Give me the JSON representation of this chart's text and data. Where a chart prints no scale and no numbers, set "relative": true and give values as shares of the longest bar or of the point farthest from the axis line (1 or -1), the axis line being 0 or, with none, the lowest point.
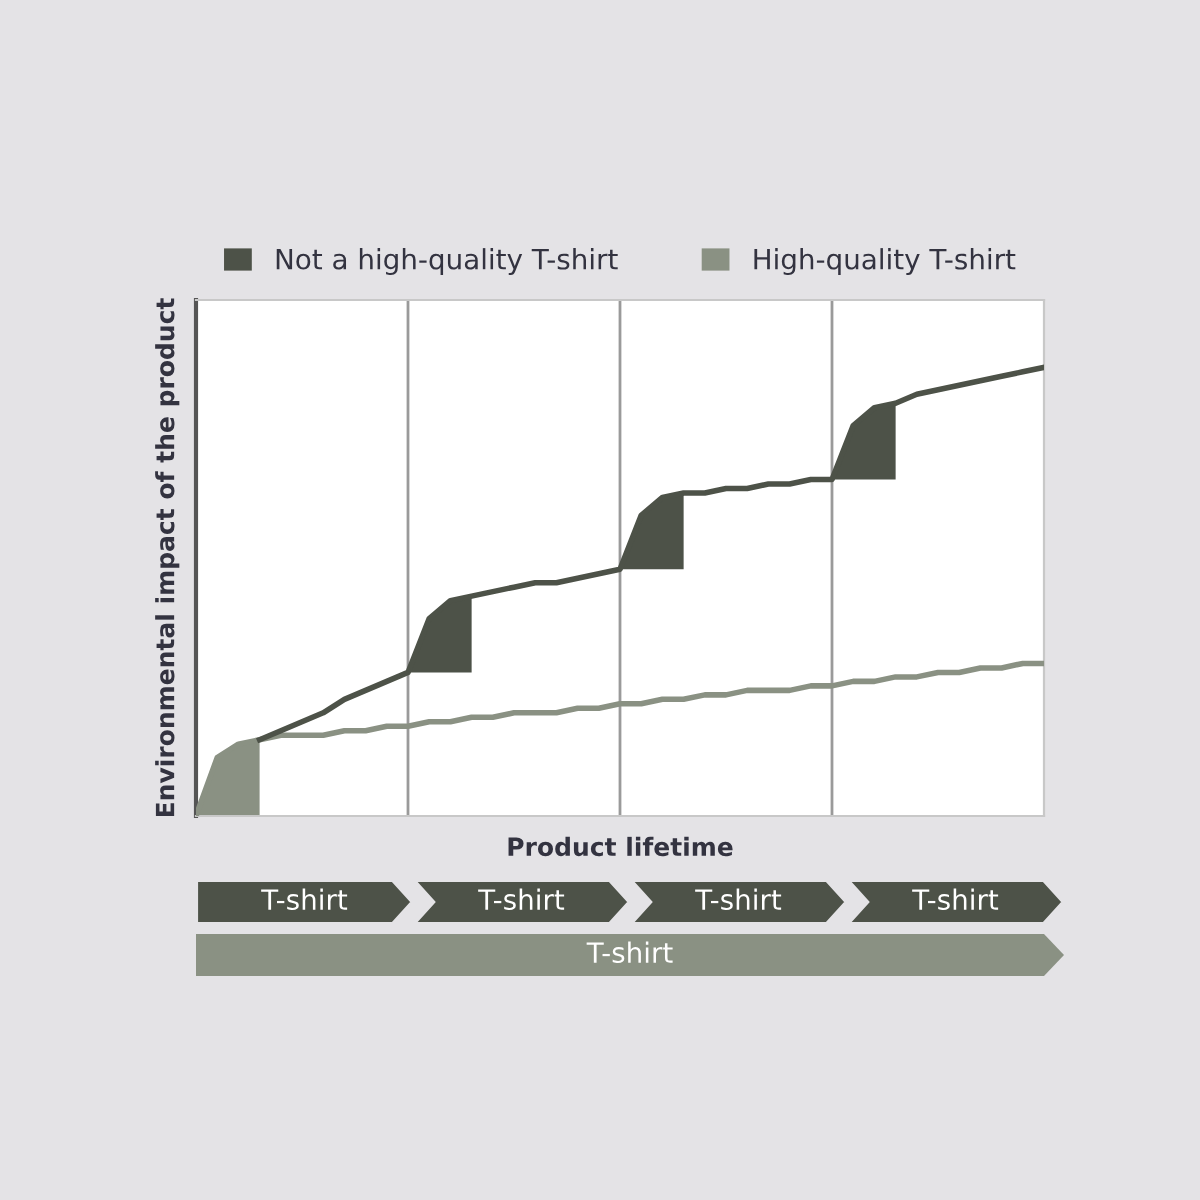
{
  "chart_data": {
    "type": "line",
    "relative": true,
    "xlabel": "Product lifetime",
    "ylabel": "Environmental impact of the product",
    "categories": [
      null,
      null,
      null,
      null,
      null,
      null,
      null,
      null,
      null,
      null,
      null,
      null,
      null,
      null,
      null,
      null,
      null,
      null,
      null,
      null,
      null,
      null,
      null,
      null,
      null,
      null,
      null,
      null,
      null,
      null,
      null,
      null,
      null,
      null,
      null,
      null,
      null,
      null,
      null,
      null,
      null
    ],
    "grid": "x",
    "legend": "top",
    "line_style": "solid",
    "series": [
      {
        "name": "Not a high-quality T-shirt",
        "color": "#4d5248",
        "values": [
          null,
          null,
          null,
          0.17,
          0.19,
          0.21,
          0.23,
          0.26,
          0.28,
          0.3,
          0.32,
          0.44,
          0.48,
          0.49,
          0.5,
          0.51,
          0.52,
          0.52,
          0.53,
          0.54,
          0.55,
          0.67,
          0.71,
          0.72,
          0.72,
          0.73,
          0.73,
          0.74,
          0.74,
          0.75,
          0.75,
          0.87,
          0.91,
          0.92,
          0.94,
          0.95,
          0.96,
          0.97,
          0.98,
          0.99,
          1.0
        ]
      },
      {
        "name": "High-quality T-shirt",
        "color": "#8a9183",
        "values": [
          0,
          0.13,
          0.16,
          0.17,
          0.18,
          0.18,
          0.18,
          0.19,
          0.19,
          0.2,
          0.2,
          0.21,
          0.21,
          0.22,
          0.22,
          0.23,
          0.23,
          0.23,
          0.24,
          0.24,
          0.25,
          0.25,
          0.26,
          0.26,
          0.27,
          0.27,
          0.28,
          0.28,
          0.28,
          0.29,
          0.29,
          0.3,
          0.3,
          0.31,
          0.31,
          0.32,
          0.32,
          0.33,
          0.33,
          0.34,
          0.34
        ]
      }
    ],
    "annotations": [
      "T-shirt",
      "T-shirt",
      "T-shirt",
      "T-shirt",
      "T-shirt"
    ]
  }
}
